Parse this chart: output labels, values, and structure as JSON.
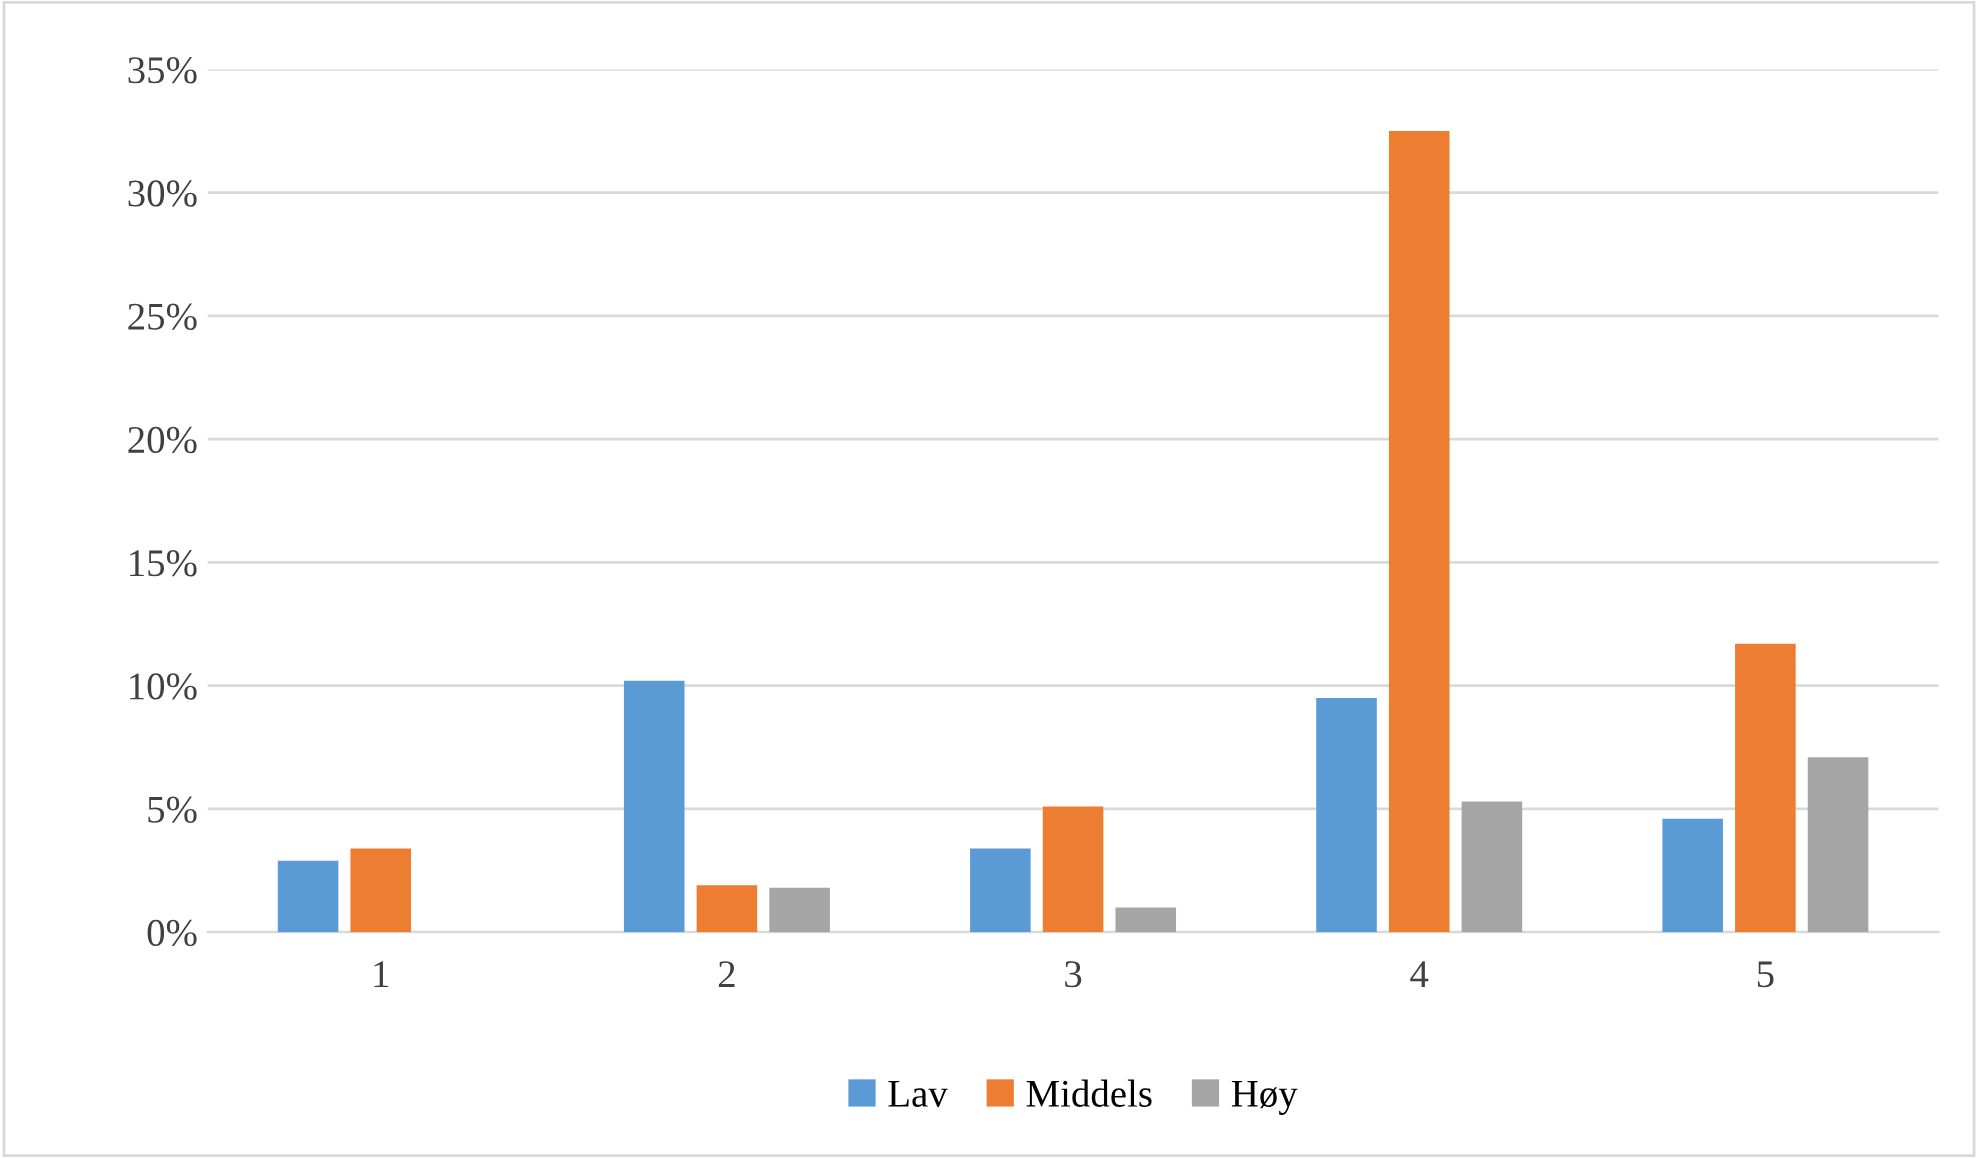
{
  "chart_data": {
    "type": "bar",
    "categories": [
      "1",
      "2",
      "3",
      "4",
      "5"
    ],
    "series": [
      {
        "name": "Lav",
        "color": "#5b9bd5",
        "values": [
          2.9,
          10.2,
          3.4,
          9.5,
          4.6
        ]
      },
      {
        "name": "Middels",
        "color": "#ed7d31",
        "values": [
          3.4,
          1.9,
          5.1,
          32.5,
          11.7
        ]
      },
      {
        "name": "Høy",
        "color": "#a5a5a5",
        "values": [
          0,
          1.8,
          1.0,
          5.3,
          7.1
        ]
      }
    ],
    "ylim": [
      0,
      35
    ],
    "yticks": [
      {
        "value": 0,
        "label": "0%"
      },
      {
        "value": 5,
        "label": "5%"
      },
      {
        "value": 10,
        "label": "10%"
      },
      {
        "value": 15,
        "label": "15%"
      },
      {
        "value": 20,
        "label": "20%"
      },
      {
        "value": 25,
        "label": "25%"
      },
      {
        "value": 30,
        "label": "30%"
      },
      {
        "value": 35,
        "label": "35%"
      }
    ],
    "grid": "y",
    "legend": "bottom"
  }
}
